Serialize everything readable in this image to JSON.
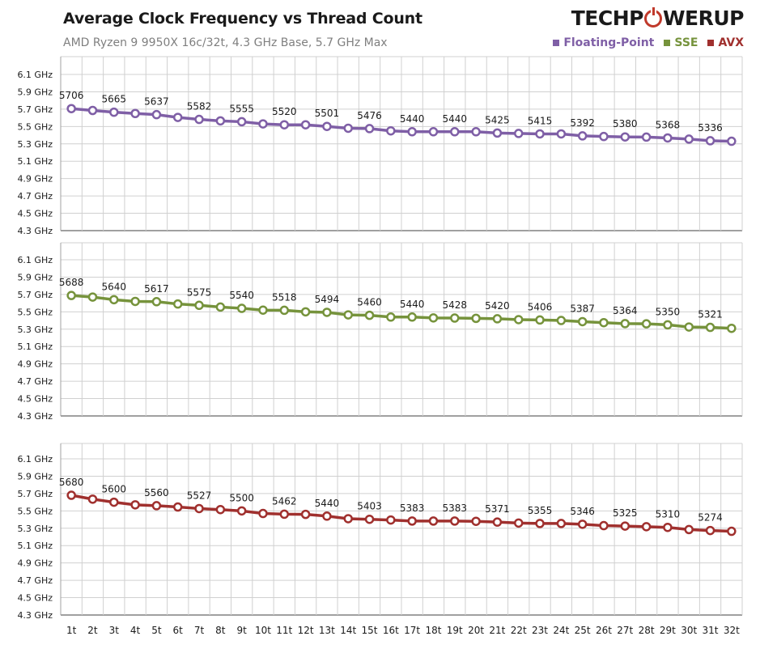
{
  "header": {
    "title": "Average Clock Frequency vs Thread Count",
    "subtitle": "AMD Ryzen 9 9950X 16c/32t, 4.3 GHz Base, 5.7 GHz Max",
    "logo_left": "TECHP",
    "logo_right": "WERUP"
  },
  "legend": [
    {
      "label": "Floating-Point",
      "color": "#7f5fa6"
    },
    {
      "label": "SSE",
      "color": "#76933c"
    },
    {
      "label": "AVX",
      "color": "#a0302e"
    }
  ],
  "chart_data": [
    {
      "type": "line",
      "series": [
        {
          "name": "Floating-Point",
          "color": "#7f5fa6",
          "values": [
            5706,
            5685,
            5665,
            5650,
            5637,
            5605,
            5582,
            5565,
            5555,
            5530,
            5520,
            5520,
            5501,
            5480,
            5476,
            5450,
            5440,
            5440,
            5440,
            5440,
            5425,
            5420,
            5415,
            5415,
            5392,
            5385,
            5380,
            5378,
            5368,
            5355,
            5336,
            5330
          ],
          "labels": [
            5706,
            null,
            5665,
            null,
            5637,
            null,
            5582,
            null,
            5555,
            null,
            5520,
            null,
            5501,
            null,
            5476,
            null,
            5440,
            null,
            5440,
            null,
            5425,
            null,
            5415,
            null,
            5392,
            null,
            5380,
            null,
            5368,
            null,
            5336,
            null
          ]
        }
      ],
      "ylim": [
        4300,
        6100
      ],
      "yticks": [
        "4.3 GHz",
        "4.5 GHz",
        "4.7 GHz",
        "4.9 GHz",
        "5.1 GHz",
        "5.3 GHz",
        "5.5 GHz",
        "5.7 GHz",
        "5.9 GHz",
        "6.1 GHz"
      ],
      "grid": true
    },
    {
      "type": "line",
      "series": [
        {
          "name": "SSE",
          "color": "#76933c",
          "values": [
            5688,
            5670,
            5640,
            5620,
            5617,
            5590,
            5575,
            5555,
            5540,
            5520,
            5518,
            5500,
            5494,
            5465,
            5460,
            5440,
            5440,
            5430,
            5428,
            5425,
            5420,
            5410,
            5406,
            5400,
            5387,
            5375,
            5364,
            5362,
            5350,
            5325,
            5321,
            5310
          ],
          "labels": [
            5688,
            null,
            5640,
            null,
            5617,
            null,
            5575,
            null,
            5540,
            null,
            5518,
            null,
            5494,
            null,
            5460,
            null,
            5440,
            null,
            5428,
            null,
            5420,
            null,
            5406,
            null,
            5387,
            null,
            5364,
            null,
            5350,
            null,
            5321,
            null
          ]
        }
      ],
      "ylim": [
        4300,
        6100
      ],
      "yticks": [
        "4.3 GHz",
        "4.5 GHz",
        "4.7 GHz",
        "4.9 GHz",
        "5.1 GHz",
        "5.3 GHz",
        "5.5 GHz",
        "5.7 GHz",
        "5.9 GHz",
        "6.1 GHz"
      ],
      "grid": true
    },
    {
      "type": "line",
      "series": [
        {
          "name": "AVX",
          "color": "#a0302e",
          "values": [
            5680,
            5635,
            5600,
            5570,
            5560,
            5545,
            5527,
            5515,
            5500,
            5470,
            5462,
            5460,
            5440,
            5410,
            5403,
            5395,
            5383,
            5383,
            5383,
            5380,
            5371,
            5360,
            5355,
            5355,
            5346,
            5330,
            5325,
            5318,
            5310,
            5285,
            5274,
            5265
          ],
          "labels": [
            5680,
            null,
            5600,
            null,
            5560,
            null,
            5527,
            null,
            5500,
            null,
            5462,
            null,
            5440,
            null,
            5403,
            null,
            5383,
            null,
            5383,
            null,
            5371,
            null,
            5355,
            null,
            5346,
            null,
            5325,
            null,
            5310,
            null,
            5274,
            null
          ]
        }
      ],
      "ylim": [
        4300,
        6100
      ],
      "yticks": [
        "4.3 GHz",
        "4.5 GHz",
        "4.7 GHz",
        "4.9 GHz",
        "5.1 GHz",
        "5.3 GHz",
        "5.5 GHz",
        "5.7 GHz",
        "5.9 GHz",
        "6.1 GHz"
      ],
      "grid": true
    }
  ],
  "x_categories": [
    "1t",
    "2t",
    "3t",
    "4t",
    "5t",
    "6t",
    "7t",
    "8t",
    "9t",
    "10t",
    "11t",
    "12t",
    "13t",
    "14t",
    "15t",
    "16t",
    "17t",
    "18t",
    "19t",
    "20t",
    "21t",
    "22t",
    "23t",
    "24t",
    "25t",
    "26t",
    "27t",
    "28t",
    "29t",
    "30t",
    "31t",
    "32t"
  ]
}
